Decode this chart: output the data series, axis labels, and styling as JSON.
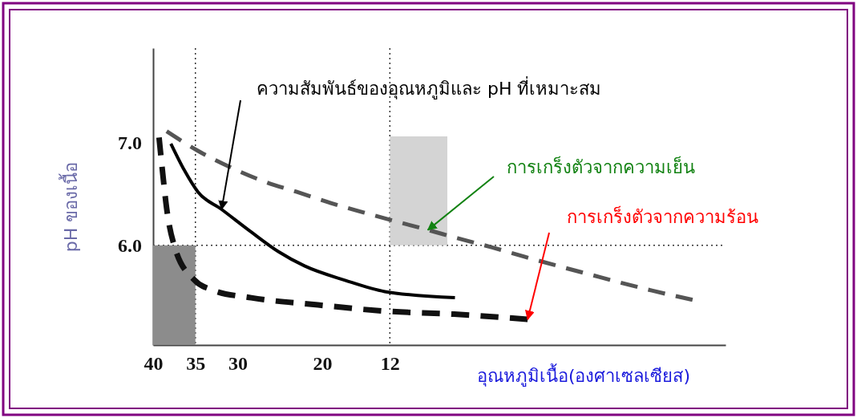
{
  "chart_data": {
    "type": "line",
    "xlabel": "อุณหภูมิเนื้อ(องศาเซลเซียส)",
    "ylabel": "pH ของเนื้อ",
    "xlim": [
      40,
      -27.7
    ],
    "ylim": [
      5.03,
      7.92
    ],
    "xticks": [
      40,
      35,
      30,
      20,
      12
    ],
    "yticks": [
      {
        "value": 7,
        "label": "7.0"
      },
      {
        "value": 6,
        "label": "6.0"
      }
    ],
    "series": [
      {
        "type": "area",
        "color": "#8c8c8c",
        "x": [
          40,
          35
        ],
        "values": [
          6.0,
          6.0
        ]
      },
      {
        "type": "area",
        "color": "#d4d4d4",
        "x": [
          12,
          5.2
        ],
        "values": [
          null,
          null
        ],
        "lower": [
          6.0,
          6.0
        ],
        "upper": [
          7.06,
          7.06
        ]
      },
      {
        "color": "#000000",
        "line_style": "solid",
        "x": [
          37.9,
          36.3,
          34.7,
          31.9,
          28.4,
          25.2,
          22.1,
          17.3,
          12.6,
          4.3
        ],
        "values": [
          6.99,
          6.73,
          6.52,
          6.35,
          6.13,
          5.94,
          5.8,
          5.66,
          5.55,
          5.49
        ]
      },
      {
        "color": "#111111",
        "line_style": "dashed",
        "x": [
          39.3,
          38.8,
          38.4,
          37.4,
          35.2,
          32.8,
          28.4,
          20.5,
          12.6,
          4.4,
          -4.3
        ],
        "values": [
          7.05,
          6.65,
          6.36,
          5.97,
          5.67,
          5.56,
          5.49,
          5.42,
          5.36,
          5.33,
          5.28
        ]
      },
      {
        "color": "#555555",
        "line_style": "dashed",
        "x": [
          38.4,
          34.7,
          30.6,
          26.8,
          23.0,
          18.9,
          15.1,
          11.6,
          7.5,
          4.0,
          -0.1,
          -3.9,
          -11.5,
          -19.0,
          -23.8
        ],
        "values": [
          7.11,
          6.92,
          6.75,
          6.62,
          6.52,
          6.41,
          6.32,
          6.24,
          6.15,
          6.07,
          5.98,
          5.89,
          5.72,
          5.56,
          5.47
        ]
      }
    ],
    "ref_lines": [
      {
        "axis": "x",
        "value": 35,
        "line_style": "dotted"
      },
      {
        "axis": "x",
        "value": 12,
        "line_style": "dotted"
      },
      {
        "axis": "y",
        "value": 6,
        "line_style": "dotted"
      }
    ],
    "annotations": [
      {
        "text": "ความสัมพันธ์ของอุณหภูมิและ pH ที่เหมาะสม",
        "x": 31.9,
        "y": 6.35
      },
      {
        "text": "การเกร็งตัวจากความเย็น",
        "x": 7.5,
        "y": 6.15
      },
      {
        "text": "การเกร็งตัวจากความร้อน",
        "x": -4.3,
        "y": 5.28
      }
    ]
  }
}
